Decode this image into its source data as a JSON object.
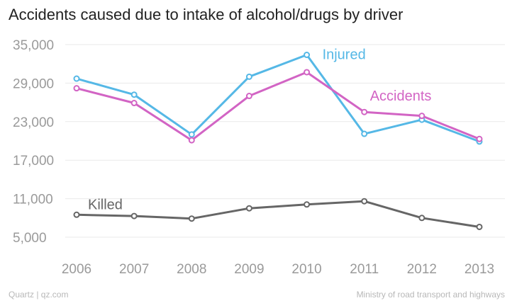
{
  "chart_data": {
    "type": "line",
    "title": "Accidents caused due to intake of alcohol/drugs by driver",
    "categories": [
      "2006",
      "2007",
      "2008",
      "2009",
      "2010",
      "2011",
      "2012",
      "2013"
    ],
    "ylim": [
      5000,
      35000
    ],
    "yticks": [
      "35,000",
      "29,000",
      "23,000",
      "17,000",
      "11,000",
      "5,000"
    ],
    "ytick_values": [
      35000,
      29000,
      23000,
      17000,
      11000,
      5000
    ],
    "grid": true,
    "series": [
      {
        "name": "Injured",
        "color": "#55b8e6",
        "values": [
          29700,
          27200,
          21000,
          30000,
          33400,
          21100,
          23300,
          19900
        ]
      },
      {
        "name": "Accidents",
        "color": "#d264c4",
        "values": [
          28200,
          25900,
          20100,
          27000,
          30700,
          24500,
          23900,
          20300
        ]
      },
      {
        "name": "Killed",
        "color": "#666666",
        "values": [
          8500,
          8300,
          7900,
          9500,
          10100,
          10600,
          8000,
          6600
        ]
      }
    ]
  },
  "footer": {
    "source_left": "Quartz | qz.com",
    "source_right": "Ministry of road transport and highways"
  }
}
